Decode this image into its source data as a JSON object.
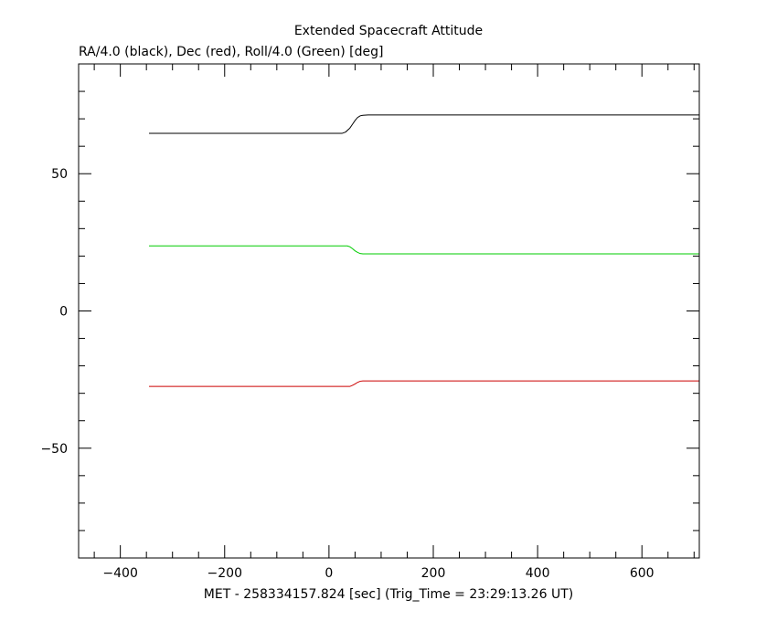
{
  "chart_data": {
    "type": "line",
    "title": "Extended Spacecraft Attitude",
    "subtitle": "RA/4.0 (black), Dec (red), Roll/4.0 (Green) [deg]",
    "xlabel": "MET - 258334157.824 [sec] (Trig_Time = 23:29:13.26 UT)",
    "ylabel": "",
    "xlim": [
      -480,
      710
    ],
    "ylim": [
      -90,
      90
    ],
    "x_ticks": [
      -400,
      -200,
      0,
      200,
      400,
      600
    ],
    "x_tick_labels": [
      "−400",
      "−200",
      "0",
      "200",
      "400",
      "600"
    ],
    "y_ticks": [
      -50,
      0,
      50
    ],
    "y_tick_labels": [
      "−50",
      "0",
      "50"
    ],
    "x_minor_step": 50,
    "y_minor_step": 10,
    "grid": false,
    "legend": "none",
    "series": [
      {
        "color": "#000000",
        "x": [
          -345,
          25,
          32,
          40,
          45,
          50,
          55,
          60,
          65,
          75,
          710
        ],
        "y": [
          64.7,
          64.7,
          65.2,
          66.6,
          68.0,
          69.4,
          70.5,
          71.1,
          71.3,
          71.4,
          71.4
        ]
      },
      {
        "color": "#00cc00",
        "x": [
          -345,
          35,
          40,
          45,
          50,
          55,
          60,
          65,
          710
        ],
        "y": [
          23.7,
          23.7,
          23.4,
          22.7,
          21.9,
          21.3,
          20.9,
          20.8,
          20.8
        ]
      },
      {
        "color": "#cc0000",
        "x": [
          -345,
          40,
          45,
          50,
          55,
          60,
          65,
          710
        ],
        "y": [
          -27.5,
          -27.5,
          -27.1,
          -26.6,
          -26.0,
          -25.6,
          -25.5,
          -25.5
        ]
      }
    ]
  }
}
